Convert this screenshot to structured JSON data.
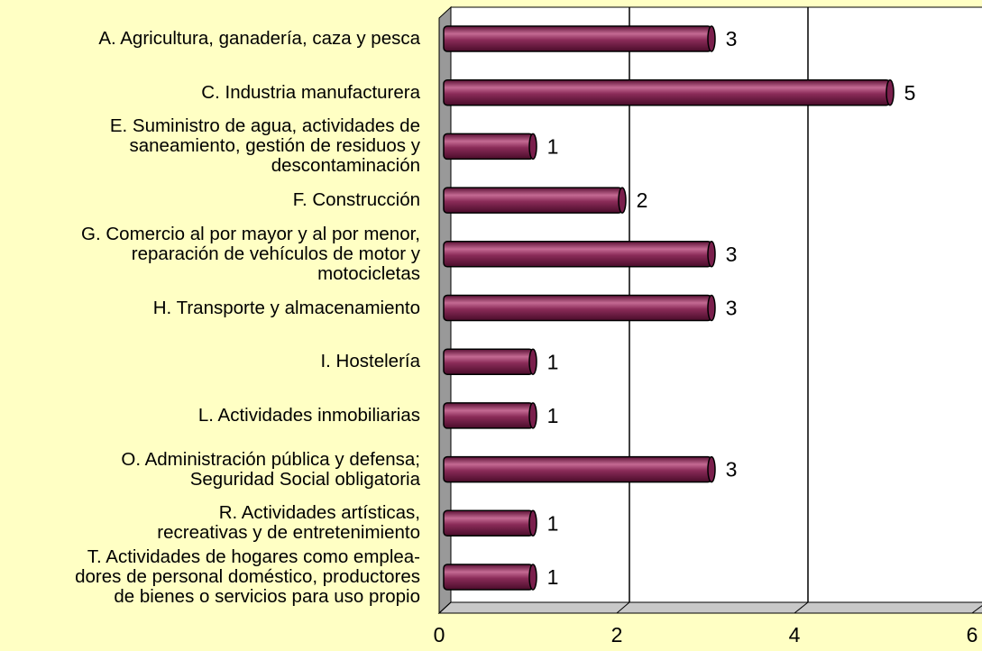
{
  "chart_data": {
    "type": "barh",
    "categories": [
      "A. Agricultura, ganadería, caza y pesca",
      "C. Industria manufacturera",
      "E. Suministro de agua, actividades de\nsaneamiento, gestión de residuos y\ndescontaminación",
      "F. Construcción",
      "G. Comercio al por mayor y al por menor,\nreparación de vehículos de motor y\nmotocicletas",
      "H. Transporte y almacenamiento",
      "I. Hostelería",
      "L. Actividades inmobiliarias",
      "O. Administración pública y defensa;\nSeguridad Social obligatoria",
      "R. Actividades artísticas,\nrecreativas y de entretenimiento",
      "T. Actividades de hogares como emplea-\ndores de personal doméstico, productores\nde bienes o servicios para uso propio"
    ],
    "values": [
      3,
      5,
      1,
      2,
      3,
      3,
      1,
      1,
      3,
      1,
      1
    ],
    "color": "#7a1f4c",
    "xlim": [
      0,
      6
    ],
    "xticks": [
      0,
      2,
      4,
      6
    ],
    "grid": true
  }
}
